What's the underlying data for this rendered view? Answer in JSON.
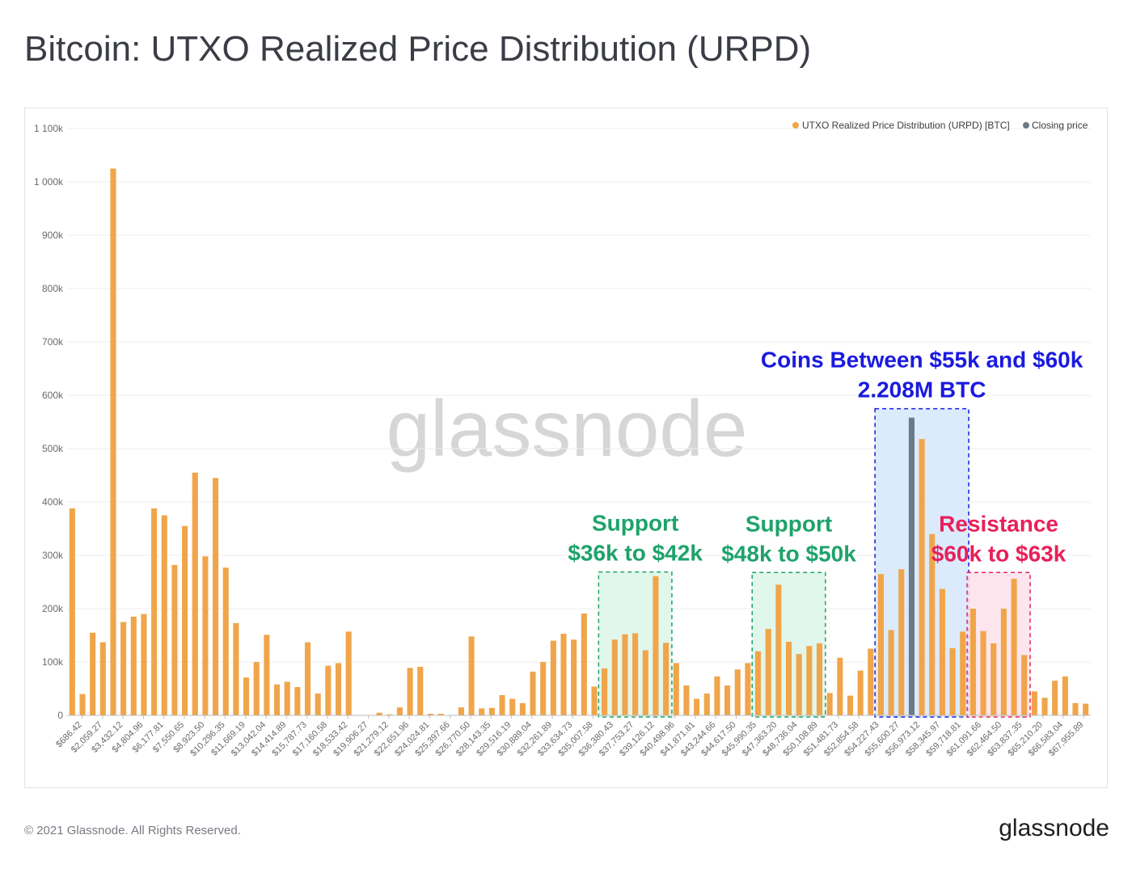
{
  "title": "Bitcoin: UTXO Realized Price Distribution (URPD)",
  "footer": {
    "copyright": "© 2021 Glassnode. All Rights Reserved.",
    "brand": "glassnode"
  },
  "watermark": "glassnode",
  "colors": {
    "bar": "#f0a54a",
    "closing": "#6b7a87",
    "grid": "#ececec"
  },
  "chart_data": {
    "type": "bar",
    "title": "Bitcoin: UTXO Realized Price Distribution (URPD)",
    "xlabel": "",
    "ylabel": "",
    "ylim": [
      0,
      1100000
    ],
    "yticks": [
      {
        "value": 0,
        "label": "0"
      },
      {
        "value": 100000,
        "label": "100k"
      },
      {
        "value": 200000,
        "label": "200k"
      },
      {
        "value": 300000,
        "label": "300k"
      },
      {
        "value": 400000,
        "label": "400k"
      },
      {
        "value": 500000,
        "label": "500k"
      },
      {
        "value": 600000,
        "label": "600k"
      },
      {
        "value": 700000,
        "label": "700k"
      },
      {
        "value": 800000,
        "label": "800k"
      },
      {
        "value": 900000,
        "label": "900k"
      },
      {
        "value": 1000000,
        "label": "1 000k"
      },
      {
        "value": 1100000,
        "label": "1 100k"
      }
    ],
    "xtick_labels": [
      "$686.42",
      "$2,059.27",
      "$3,432.12",
      "$4,804.96",
      "$6,177.81",
      "$7,550.65",
      "$8,923.50",
      "$10,296.35",
      "$11,669.19",
      "$13,042.04",
      "$14,414.89",
      "$15,787.73",
      "$17,160.58",
      "$18,533.42",
      "$19,906.27",
      "$21,279.12",
      "$22,651.96",
      "$24,024.81",
      "$25,397.66",
      "$26,770.50",
      "$28,143.35",
      "$29,516.19",
      "$30,889.04",
      "$32,261.89",
      "$33,634.73",
      "$35,007.58",
      "$36,380.43",
      "$37,753.27",
      "$39,126.12",
      "$40,498.96",
      "$41,871.81",
      "$43,244.66",
      "$44,617.50",
      "$45,990.35",
      "$47,363.20",
      "$48,736.04",
      "$50,108.89",
      "$51,481.73",
      "$52,854.58",
      "$54,227.43",
      "$55,600.27",
      "$56,973.12",
      "$58,345.97",
      "$59,718.81",
      "$61,091.66",
      "$62,464.50",
      "$63,837.35",
      "$65,210.20",
      "$66,583.04",
      "$67,955.89"
    ],
    "closing_index": 82,
    "series": [
      {
        "name": "UTXO Realized Price Distribution (URPD) [BTC]",
        "color": "#f0a54a",
        "values": [
          388000,
          40000,
          155000,
          137000,
          1025000,
          175000,
          185000,
          190000,
          388000,
          375000,
          282000,
          355000,
          455000,
          298000,
          445000,
          277000,
          173000,
          71000,
          100000,
          151000,
          58000,
          63000,
          53000,
          137000,
          41000,
          93000,
          98000,
          157000,
          0,
          0,
          5000,
          2000,
          15000,
          89000,
          91000,
          3000,
          3000,
          0,
          15000,
          148000,
          13000,
          14000,
          38000,
          31000,
          23000,
          82000,
          100000,
          140000,
          153000,
          142000,
          191000,
          54000,
          88000,
          142000,
          152000,
          154000,
          122000,
          261000,
          136000,
          98000,
          56000,
          31000,
          41000,
          73000,
          56000,
          86000,
          98000,
          120000,
          162000,
          245000,
          138000,
          115000,
          130000,
          135000,
          42000,
          108000,
          37000,
          84000,
          125000,
          265000,
          160000,
          274000,
          558000,
          518000,
          340000,
          237000,
          126000,
          157000,
          200000,
          158000,
          135000,
          200000,
          256000,
          113000,
          45000,
          33000,
          65000,
          73000,
          23000,
          22000
        ]
      },
      {
        "name": "Closing price",
        "color": "#6b7a87"
      }
    ],
    "annotations": [
      {
        "lines": [
          "Support",
          "$36k to $42k"
        ],
        "color": "#1ea36a",
        "box_fill": "#dcf6e9",
        "range_index": [
          52,
          58
        ]
      },
      {
        "lines": [
          "Support",
          "$48k to $50k"
        ],
        "color": "#1ea36a",
        "box_fill": "#dcf6e9",
        "range_index": [
          67,
          73
        ]
      },
      {
        "lines": [
          "Coins Between $55k and $60k",
          "2.208M BTC"
        ],
        "color": "#1a1ae0",
        "box_fill": "#d5e8fb",
        "range_index": [
          79,
          87
        ]
      },
      {
        "lines": [
          "Resistance",
          "$60k to $63k"
        ],
        "color": "#e8205a",
        "box_fill": "#fde0ea",
        "range_index": [
          88,
          93
        ]
      }
    ],
    "legend_position": "top-right"
  }
}
